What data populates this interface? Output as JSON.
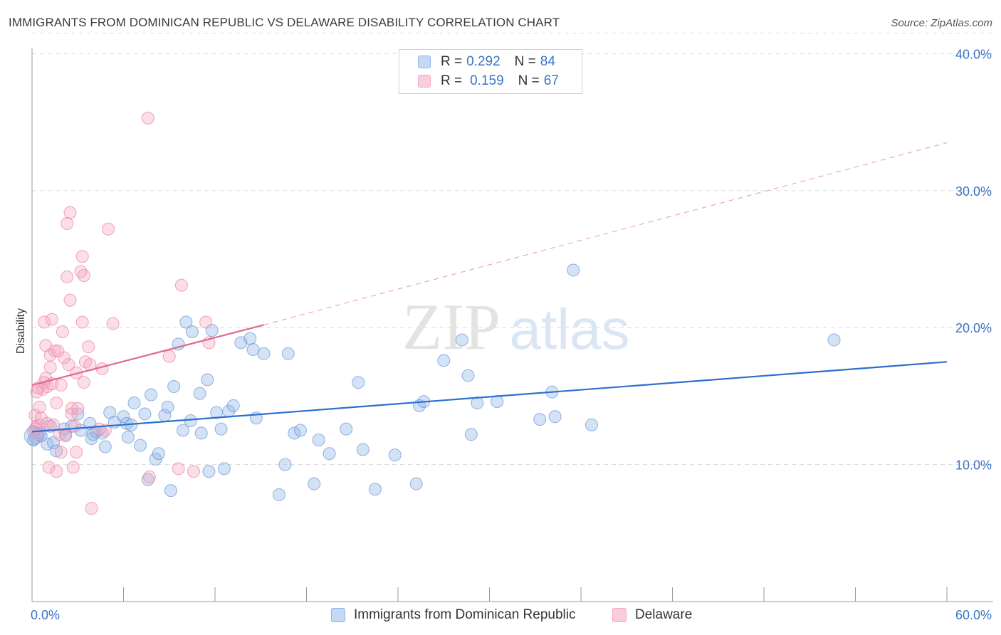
{
  "title": "IMMIGRANTS FROM DOMINICAN REPUBLIC VS DELAWARE DISABILITY CORRELATION CHART",
  "source": "Source: ZipAtlas.com",
  "watermark": {
    "zip": "ZIP",
    "atlas": "atlas"
  },
  "legend": {
    "r_label": "R =",
    "n_label": "N =",
    "series": [
      {
        "r": "0.292",
        "n": "84"
      },
      {
        "r": "0.159",
        "n": "67"
      }
    ]
  },
  "chart_data": {
    "type": "scatter",
    "title": "IMMIGRANTS FROM DOMINICAN REPUBLIC VS DELAWARE DISABILITY CORRELATION CHART",
    "xlabel": "",
    "ylabel": "Disability",
    "xlim": [
      0,
      60
    ],
    "ylim": [
      0,
      42
    ],
    "x_tick_labels": [
      "0.0%",
      "60.0%"
    ],
    "y_ticks": [
      10,
      20,
      30,
      40
    ],
    "y_tick_labels": [
      "10.0%",
      "20.0%",
      "30.0%",
      "40.0%"
    ],
    "grid": true,
    "legend_position": "top-center",
    "series": [
      {
        "name": "Immigrants from Dominican Republic",
        "color": "#8fb4e8",
        "edge": "#6e9bd8",
        "line_color": "#2b6fd0",
        "r": 0.292,
        "n": 84,
        "trend": {
          "x": [
            0,
            60
          ],
          "y": [
            12.4,
            17.5
          ],
          "dashed_extension": false
        },
        "points": [
          [
            0.2,
            12.0
          ],
          [
            0.5,
            12.3
          ],
          [
            1.0,
            11.5
          ],
          [
            1.2,
            12.8
          ],
          [
            1.4,
            11.6
          ],
          [
            1.6,
            11.0
          ],
          [
            2.2,
            12.2
          ],
          [
            2.6,
            12.8
          ],
          [
            3.0,
            13.7
          ],
          [
            3.2,
            12.5
          ],
          [
            3.8,
            13.0
          ],
          [
            3.9,
            11.9
          ],
          [
            4.2,
            12.4
          ],
          [
            4.6,
            12.3
          ],
          [
            4.8,
            11.3
          ],
          [
            5.1,
            13.8
          ],
          [
            5.4,
            13.1
          ],
          [
            6.0,
            13.5
          ],
          [
            6.2,
            13.0
          ],
          [
            6.3,
            12.0
          ],
          [
            6.7,
            14.5
          ],
          [
            7.1,
            11.4
          ],
          [
            7.4,
            13.7
          ],
          [
            7.6,
            8.9
          ],
          [
            7.8,
            15.1
          ],
          [
            8.1,
            10.4
          ],
          [
            8.3,
            10.8
          ],
          [
            8.7,
            13.6
          ],
          [
            8.9,
            14.2
          ],
          [
            9.1,
            8.1
          ],
          [
            9.3,
            15.7
          ],
          [
            9.6,
            18.8
          ],
          [
            9.9,
            12.5
          ],
          [
            10.1,
            20.4
          ],
          [
            10.4,
            13.2
          ],
          [
            10.5,
            19.7
          ],
          [
            11.0,
            15.2
          ],
          [
            11.1,
            12.3
          ],
          [
            11.5,
            16.2
          ],
          [
            11.6,
            9.5
          ],
          [
            11.8,
            19.8
          ],
          [
            12.1,
            13.8
          ],
          [
            12.4,
            12.6
          ],
          [
            12.6,
            9.7
          ],
          [
            12.9,
            13.9
          ],
          [
            13.2,
            14.3
          ],
          [
            13.7,
            18.9
          ],
          [
            14.3,
            19.2
          ],
          [
            14.5,
            18.4
          ],
          [
            14.7,
            13.4
          ],
          [
            15.2,
            18.1
          ],
          [
            16.2,
            7.8
          ],
          [
            16.6,
            10.0
          ],
          [
            16.8,
            18.1
          ],
          [
            17.2,
            12.3
          ],
          [
            17.6,
            12.5
          ],
          [
            18.5,
            8.6
          ],
          [
            18.8,
            11.8
          ],
          [
            19.5,
            10.8
          ],
          [
            20.6,
            12.6
          ],
          [
            21.4,
            16.0
          ],
          [
            21.7,
            11.1
          ],
          [
            22.5,
            8.2
          ],
          [
            23.8,
            10.7
          ],
          [
            25.2,
            8.6
          ],
          [
            25.4,
            14.3
          ],
          [
            25.7,
            14.6
          ],
          [
            27.0,
            17.6
          ],
          [
            28.2,
            19.1
          ],
          [
            28.6,
            16.5
          ],
          [
            28.8,
            12.2
          ],
          [
            29.2,
            14.5
          ],
          [
            30.5,
            14.6
          ],
          [
            33.3,
            13.3
          ],
          [
            34.1,
            15.3
          ],
          [
            34.3,
            13.5
          ],
          [
            35.5,
            24.2
          ],
          [
            36.7,
            12.9
          ],
          [
            52.6,
            19.1
          ],
          [
            0.1,
            11.8
          ],
          [
            0.6,
            12.1
          ],
          [
            2.1,
            12.6
          ],
          [
            4.0,
            12.2
          ],
          [
            6.5,
            12.9
          ]
        ]
      },
      {
        "name": "Delaware",
        "color": "#f4a7bf",
        "edge": "#ec87a6",
        "line_color": "#e0688f",
        "r": 0.159,
        "n": 67,
        "trend": {
          "x": [
            0,
            15.2
          ],
          "y": [
            15.8,
            20.2
          ],
          "dashed_to": [
            60,
            33.5
          ]
        },
        "points": [
          [
            0.1,
            12.4
          ],
          [
            0.2,
            13.6
          ],
          [
            0.3,
            12.8
          ],
          [
            0.3,
            15.3
          ],
          [
            0.4,
            12.2
          ],
          [
            0.5,
            14.2
          ],
          [
            0.5,
            12.9
          ],
          [
            0.6,
            13.4
          ],
          [
            0.7,
            15.5
          ],
          [
            0.8,
            16.0
          ],
          [
            0.8,
            20.4
          ],
          [
            0.9,
            18.7
          ],
          [
            1.0,
            15.7
          ],
          [
            1.0,
            13.0
          ],
          [
            1.1,
            9.8
          ],
          [
            1.2,
            17.1
          ],
          [
            1.2,
            18.0
          ],
          [
            1.3,
            20.6
          ],
          [
            1.4,
            12.9
          ],
          [
            1.5,
            18.3
          ],
          [
            1.6,
            14.5
          ],
          [
            1.6,
            9.5
          ],
          [
            1.8,
            12.2
          ],
          [
            1.9,
            15.8
          ],
          [
            1.9,
            10.9
          ],
          [
            2.0,
            19.7
          ],
          [
            2.1,
            17.8
          ],
          [
            2.3,
            27.6
          ],
          [
            2.3,
            23.7
          ],
          [
            2.4,
            17.3
          ],
          [
            2.5,
            22.0
          ],
          [
            2.5,
            28.4
          ],
          [
            2.6,
            14.1
          ],
          [
            2.6,
            13.7
          ],
          [
            2.7,
            9.8
          ],
          [
            2.8,
            12.8
          ],
          [
            2.9,
            10.9
          ],
          [
            2.9,
            16.7
          ],
          [
            3.0,
            14.1
          ],
          [
            3.2,
            24.1
          ],
          [
            3.3,
            25.2
          ],
          [
            3.3,
            20.4
          ],
          [
            3.4,
            23.8
          ],
          [
            3.4,
            16.0
          ],
          [
            3.5,
            17.5
          ],
          [
            3.7,
            18.6
          ],
          [
            3.8,
            17.3
          ],
          [
            3.9,
            6.8
          ],
          [
            4.6,
            17.0
          ],
          [
            4.8,
            12.5
          ],
          [
            5.0,
            27.2
          ],
          [
            5.3,
            20.3
          ],
          [
            7.6,
            35.3
          ],
          [
            7.7,
            9.1
          ],
          [
            9.0,
            17.9
          ],
          [
            9.6,
            9.7
          ],
          [
            9.8,
            23.1
          ],
          [
            10.6,
            9.5
          ],
          [
            11.4,
            20.4
          ],
          [
            11.6,
            18.9
          ],
          [
            0.4,
            15.6
          ],
          [
            0.9,
            16.3
          ],
          [
            1.3,
            15.9
          ],
          [
            2.2,
            12.1
          ],
          [
            0.2,
            12.6
          ],
          [
            1.7,
            18.3
          ],
          [
            4.4,
            12.6
          ]
        ]
      }
    ]
  }
}
